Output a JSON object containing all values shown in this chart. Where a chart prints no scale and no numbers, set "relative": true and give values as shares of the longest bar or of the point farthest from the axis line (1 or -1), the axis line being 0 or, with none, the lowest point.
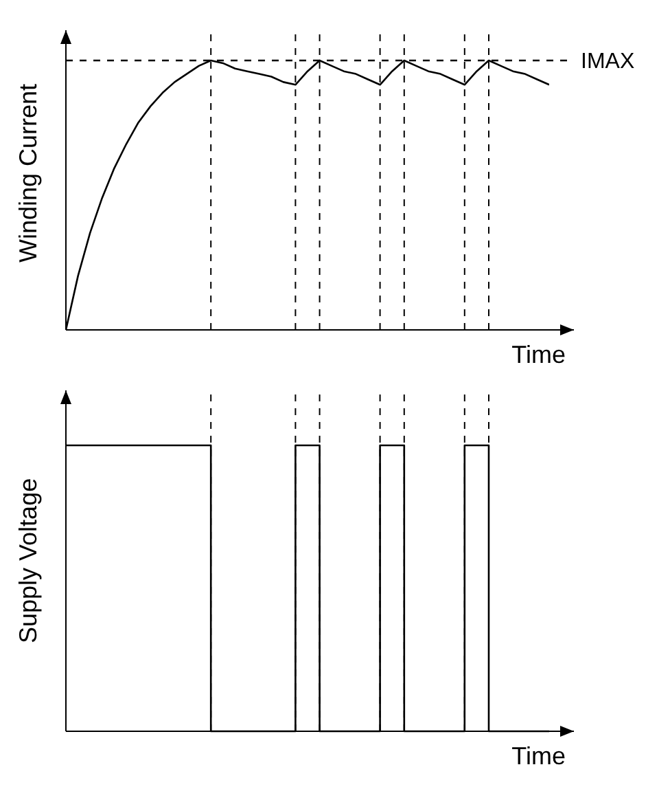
{
  "chart_data": [
    {
      "type": "line",
      "xlabel": "Time",
      "ylabel": "Winding Current",
      "relative": true,
      "color": "#000000",
      "line_style": "solid",
      "grid": "x",
      "categories": [
        null,
        null,
        null,
        null,
        null,
        null,
        null,
        null,
        null,
        null,
        null,
        null,
        null,
        null,
        null,
        null,
        null,
        null,
        null,
        null,
        null,
        null,
        null,
        null,
        null,
        null,
        null,
        null,
        null,
        null,
        null,
        null,
        null,
        null,
        null,
        null,
        null,
        null,
        null,
        null,
        null
      ],
      "values": [
        0,
        0.2,
        0.36,
        0.49,
        0.6,
        0.69,
        0.77,
        0.83,
        0.88,
        0.92,
        0.95,
        0.98,
        1,
        0.99,
        0.97,
        0.96,
        0.95,
        0.94,
        0.92,
        0.91,
        0.96,
        1,
        0.98,
        0.96,
        0.95,
        0.93,
        0.91,
        0.96,
        1,
        0.98,
        0.96,
        0.95,
        0.93,
        0.91,
        0.96,
        1,
        0.98,
        0.96,
        0.95,
        0.93,
        0.91
      ],
      "ref_lines": [
        {
          "axis": "y",
          "value": 1,
          "label": "IMAX",
          "line_style": "dashed"
        }
      ]
    },
    {
      "type": "step",
      "xlabel": "Time",
      "ylabel": "Supply Voltage",
      "relative": true,
      "color": "#000000",
      "line_style": "solid",
      "grid": "x",
      "categories": [
        null,
        null,
        null,
        null,
        null,
        null,
        null,
        null,
        null,
        null,
        null,
        null,
        null,
        null,
        null,
        null,
        null,
        null,
        null,
        null,
        null,
        null,
        null,
        null,
        null,
        null,
        null,
        null,
        null,
        null,
        null,
        null,
        null,
        null,
        null,
        null,
        null,
        null,
        null,
        null,
        null
      ],
      "values": [
        1,
        1,
        1,
        1,
        1,
        1,
        1,
        1,
        1,
        1,
        1,
        1,
        0,
        0,
        0,
        0,
        0,
        0,
        0,
        1,
        1,
        0,
        0,
        0,
        0,
        0,
        1,
        1,
        0,
        0,
        0,
        0,
        0,
        1,
        1,
        0,
        0,
        0,
        0,
        0,
        0
      ]
    }
  ]
}
